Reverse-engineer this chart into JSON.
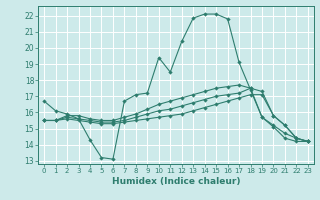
{
  "xlabel": "Humidex (Indice chaleur)",
  "bg_color": "#cdeaea",
  "line_color": "#2e7d6e",
  "grid_color": "#ffffff",
  "xlim": [
    -0.5,
    23.5
  ],
  "ylim": [
    12.8,
    22.6
  ],
  "yticks": [
    13,
    14,
    15,
    16,
    17,
    18,
    19,
    20,
    21,
    22
  ],
  "xticks": [
    0,
    1,
    2,
    3,
    4,
    5,
    6,
    7,
    8,
    9,
    10,
    11,
    12,
    13,
    14,
    15,
    16,
    17,
    18,
    19,
    20,
    21,
    22,
    23
  ],
  "lines": [
    {
      "x": [
        0,
        1,
        2,
        3,
        4,
        5,
        6,
        7,
        8,
        9,
        10,
        11,
        12,
        13,
        14,
        15,
        16,
        17,
        18,
        19,
        20,
        21,
        22,
        23
      ],
      "y": [
        16.7,
        16.1,
        15.9,
        15.6,
        14.3,
        13.2,
        13.1,
        16.7,
        17.1,
        17.2,
        19.4,
        18.5,
        20.4,
        21.85,
        22.1,
        22.1,
        21.8,
        19.1,
        17.4,
        15.7,
        15.1,
        14.4,
        14.2,
        14.2
      ]
    },
    {
      "x": [
        0,
        1,
        2,
        3,
        4,
        5,
        6,
        7,
        8,
        9,
        10,
        11,
        12,
        13,
        14,
        15,
        16,
        17,
        18,
        19,
        20,
        21,
        22,
        23
      ],
      "y": [
        15.5,
        15.5,
        15.8,
        15.8,
        15.6,
        15.5,
        15.5,
        15.7,
        15.9,
        16.2,
        16.5,
        16.7,
        16.9,
        17.1,
        17.3,
        17.5,
        17.6,
        17.7,
        17.5,
        15.7,
        15.2,
        14.7,
        14.4,
        14.2
      ]
    },
    {
      "x": [
        0,
        1,
        2,
        3,
        4,
        5,
        6,
        7,
        8,
        9,
        10,
        11,
        12,
        13,
        14,
        15,
        16,
        17,
        18,
        19,
        20,
        21,
        22,
        23
      ],
      "y": [
        15.5,
        15.5,
        15.7,
        15.6,
        15.5,
        15.4,
        15.4,
        15.5,
        15.7,
        15.9,
        16.1,
        16.2,
        16.4,
        16.6,
        16.8,
        17.0,
        17.1,
        17.2,
        17.5,
        17.3,
        15.8,
        15.2,
        14.4,
        14.2
      ]
    },
    {
      "x": [
        0,
        1,
        2,
        3,
        4,
        5,
        6,
        7,
        8,
        9,
        10,
        11,
        12,
        13,
        14,
        15,
        16,
        17,
        18,
        19,
        20,
        21,
        22,
        23
      ],
      "y": [
        15.5,
        15.5,
        15.6,
        15.5,
        15.4,
        15.3,
        15.3,
        15.4,
        15.5,
        15.6,
        15.7,
        15.8,
        15.9,
        16.1,
        16.3,
        16.5,
        16.7,
        16.9,
        17.1,
        17.1,
        15.8,
        15.2,
        14.4,
        14.2
      ]
    }
  ]
}
